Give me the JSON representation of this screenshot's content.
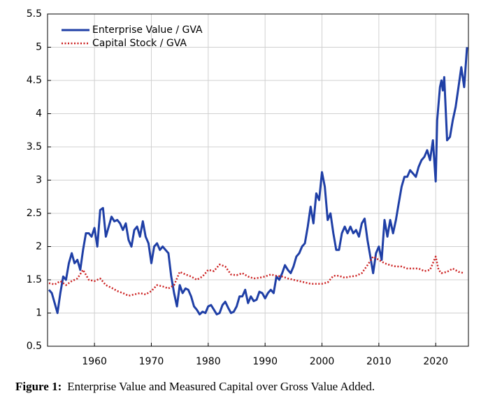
{
  "chart_data": {
    "type": "line",
    "figure_label": "Figure 1:",
    "caption": "Enterprise Value and Measured Capital over Gross Value Added.",
    "xlim": [
      1951.75,
      2025.75
    ],
    "xticks": [
      1960,
      1970,
      1980,
      1990,
      2000,
      2010,
      2020
    ],
    "ylim": [
      0.5,
      5.5
    ],
    "yticks": [
      0.5,
      1,
      1.5,
      2,
      2.5,
      3,
      3.5,
      4,
      4.5,
      5,
      5.5
    ],
    "grid": true,
    "legend": "upper-left",
    "series": [
      {
        "name": "Enterprise Value / GVA",
        "color": "#1f3fa6",
        "style": "solid",
        "x": [
          1952,
          1952.5,
          1953,
          1953.5,
          1954,
          1954.5,
          1955,
          1955.5,
          1956,
          1956.5,
          1957,
          1957.5,
          1958,
          1958.5,
          1959,
          1959.5,
          1960,
          1960.5,
          1961,
          1961.5,
          1962,
          1962.5,
          1963,
          1963.5,
          1964,
          1964.5,
          1965,
          1965.5,
          1966,
          1966.5,
          1967,
          1967.5,
          1968,
          1968.5,
          1969,
          1969.5,
          1970,
          1970.5,
          1971,
          1971.5,
          1972,
          1972.5,
          1973,
          1973.5,
          1974,
          1974.5,
          1975,
          1975.5,
          1976,
          1976.5,
          1977,
          1977.5,
          1978,
          1978.5,
          1979,
          1979.5,
          1980,
          1980.5,
          1981,
          1981.5,
          1982,
          1982.5,
          1983,
          1983.5,
          1984,
          1984.5,
          1985,
          1985.5,
          1986,
          1986.5,
          1987,
          1987.5,
          1988,
          1988.5,
          1989,
          1989.5,
          1990,
          1990.5,
          1991,
          1991.5,
          1992,
          1992.5,
          1993,
          1993.5,
          1994,
          1994.5,
          1995,
          1995.5,
          1996,
          1996.5,
          1997,
          1997.5,
          1998,
          1998.5,
          1999,
          1999.5,
          2000,
          2000.5,
          2001,
          2001.5,
          2002,
          2002.5,
          2003,
          2003.5,
          2004,
          2004.5,
          2005,
          2005.5,
          2006,
          2006.5,
          2007,
          2007.5,
          2008,
          2008.5,
          2009,
          2009.5,
          2010,
          2010.5,
          2011,
          2011.5,
          2012,
          2012.5,
          2013,
          2013.5,
          2014,
          2014.5,
          2015,
          2015.5,
          2016,
          2016.5,
          2017,
          2017.5,
          2018,
          2018.5,
          2019,
          2019.5,
          2020,
          2020.25,
          2020.75,
          2021,
          2021.25,
          2021.5,
          2022,
          2022.5,
          2023,
          2023.5,
          2024,
          2024.5,
          2025,
          2025.5
        ],
        "values": [
          1.35,
          1.3,
          1.15,
          1.0,
          1.3,
          1.55,
          1.5,
          1.75,
          1.9,
          1.75,
          1.8,
          1.65,
          1.95,
          2.2,
          2.2,
          2.15,
          2.28,
          2.0,
          2.55,
          2.58,
          2.15,
          2.3,
          2.45,
          2.38,
          2.4,
          2.35,
          2.25,
          2.35,
          2.1,
          2.0,
          2.25,
          2.3,
          2.15,
          2.38,
          2.15,
          2.05,
          1.75,
          2.0,
          2.05,
          1.95,
          2.0,
          1.95,
          1.9,
          1.55,
          1.3,
          1.1,
          1.42,
          1.3,
          1.37,
          1.35,
          1.25,
          1.1,
          1.05,
          0.98,
          1.02,
          1.0,
          1.1,
          1.12,
          1.05,
          0.98,
          1.0,
          1.12,
          1.17,
          1.08,
          1.0,
          1.02,
          1.1,
          1.25,
          1.25,
          1.35,
          1.15,
          1.25,
          1.18,
          1.2,
          1.32,
          1.3,
          1.22,
          1.3,
          1.35,
          1.3,
          1.55,
          1.5,
          1.6,
          1.72,
          1.65,
          1.6,
          1.7,
          1.85,
          1.9,
          2.0,
          2.05,
          2.3,
          2.6,
          2.35,
          2.8,
          2.7,
          3.12,
          2.9,
          2.4,
          2.5,
          2.2,
          1.95,
          1.95,
          2.2,
          2.3,
          2.2,
          2.3,
          2.2,
          2.25,
          2.15,
          2.35,
          2.42,
          2.1,
          1.85,
          1.6,
          1.9,
          2.0,
          1.8,
          2.4,
          2.15,
          2.4,
          2.2,
          2.4,
          2.65,
          2.9,
          3.05,
          3.05,
          3.15,
          3.1,
          3.05,
          3.2,
          3.3,
          3.35,
          3.45,
          3.3,
          3.6,
          2.98,
          3.9,
          4.4,
          4.5,
          4.35,
          4.55,
          3.6,
          3.65,
          3.9,
          4.1,
          4.4,
          4.7,
          4.4,
          5.0
        ]
      },
      {
        "name": "Capital Stock / GVA",
        "color": "#cc2020",
        "style": "dotted",
        "x": [
          1952,
          1953,
          1954,
          1955,
          1956,
          1957,
          1958,
          1959,
          1960,
          1961,
          1962,
          1963,
          1964,
          1965,
          1966,
          1967,
          1968,
          1969,
          1970,
          1971,
          1972,
          1973,
          1974,
          1975,
          1976,
          1977,
          1978,
          1979,
          1980,
          1981,
          1982,
          1983,
          1984,
          1985,
          1986,
          1987,
          1988,
          1989,
          1990,
          1991,
          1992,
          1993,
          1994,
          1995,
          1996,
          1997,
          1998,
          1999,
          2000,
          2001,
          2002,
          2003,
          2004,
          2005,
          2006,
          2007,
          2008,
          2009,
          2010,
          2011,
          2012,
          2013,
          2014,
          2015,
          2016,
          2017,
          2018,
          2019,
          2020,
          2020.5,
          2021,
          2022,
          2023,
          2024,
          2025
        ],
        "values": [
          1.45,
          1.43,
          1.48,
          1.42,
          1.48,
          1.52,
          1.65,
          1.5,
          1.48,
          1.52,
          1.42,
          1.38,
          1.33,
          1.3,
          1.26,
          1.28,
          1.3,
          1.28,
          1.33,
          1.42,
          1.4,
          1.37,
          1.42,
          1.62,
          1.58,
          1.55,
          1.5,
          1.55,
          1.65,
          1.63,
          1.73,
          1.7,
          1.58,
          1.57,
          1.6,
          1.55,
          1.52,
          1.53,
          1.55,
          1.58,
          1.56,
          1.55,
          1.52,
          1.5,
          1.48,
          1.46,
          1.44,
          1.44,
          1.44,
          1.46,
          1.56,
          1.56,
          1.53,
          1.55,
          1.56,
          1.6,
          1.72,
          1.85,
          1.8,
          1.75,
          1.72,
          1.7,
          1.7,
          1.67,
          1.67,
          1.67,
          1.63,
          1.65,
          1.85,
          1.65,
          1.6,
          1.62,
          1.67,
          1.62,
          1.6
        ]
      }
    ]
  }
}
